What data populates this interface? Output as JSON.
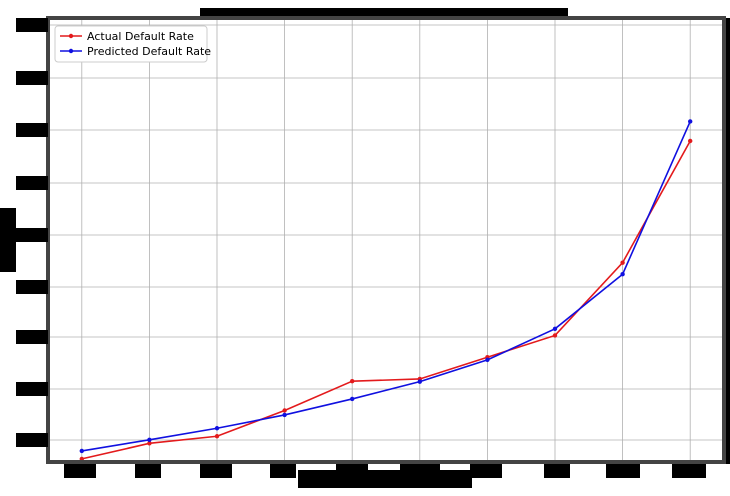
{
  "chart_data": {
    "type": "line",
    "title": "",
    "xlabel": "",
    "ylabel": "",
    "grid": true,
    "legend_position": "top-left",
    "xlim": [
      0.5,
      10.5
    ],
    "ylim": [
      0,
      100
    ],
    "x": [
      1,
      2,
      3,
      4,
      5,
      6,
      7,
      8,
      9,
      10
    ],
    "series": [
      {
        "name": "Actual Default Rate",
        "color": "#e31a1c",
        "marker": "circle",
        "values": [
          0.7,
          4.2,
          5.8,
          11.6,
          18.2,
          18.7,
          23.6,
          28.5,
          44.9,
          72.3
        ]
      },
      {
        "name": "Predicted Default Rate",
        "color": "#1010e0",
        "marker": "circle",
        "values": [
          2.5,
          5.0,
          7.6,
          10.6,
          14.2,
          18.1,
          23.0,
          30.0,
          42.3,
          76.7
        ]
      }
    ],
    "tick_labels_note_hidden": true
  }
}
